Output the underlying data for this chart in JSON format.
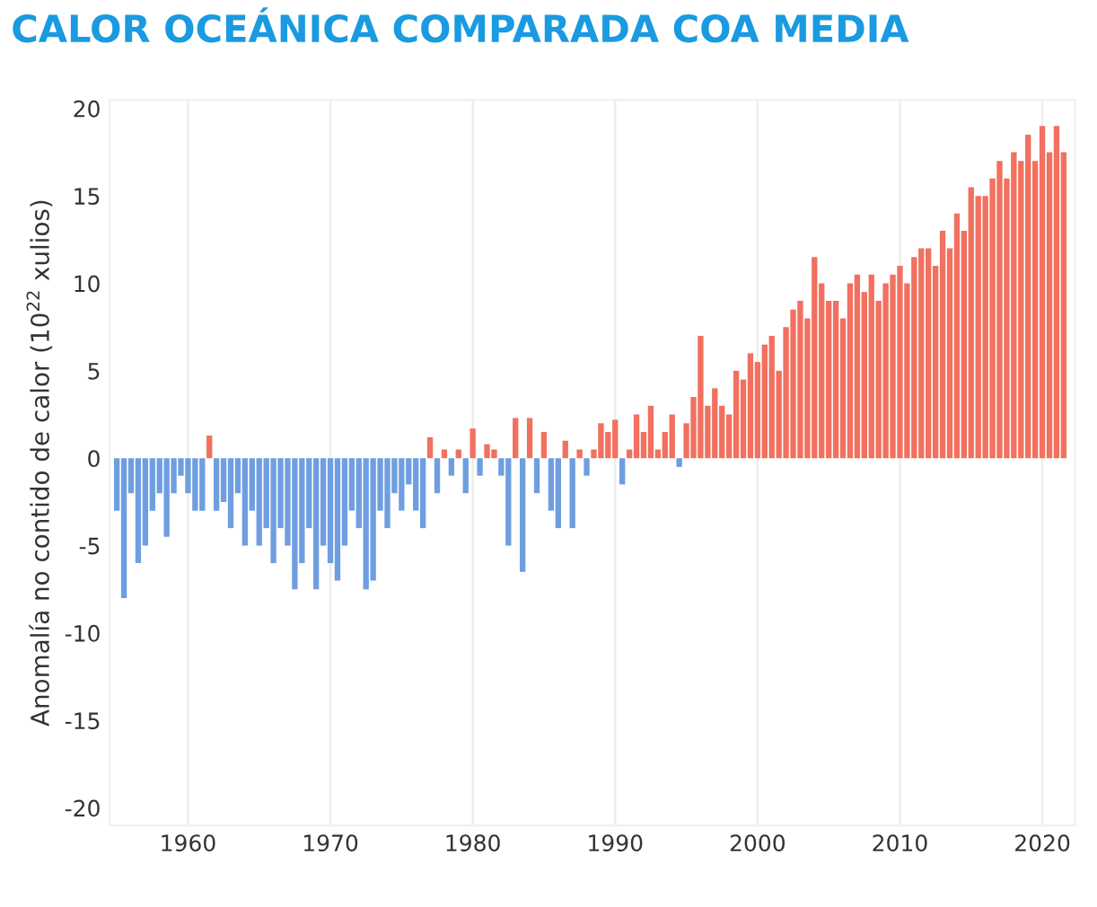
{
  "chart_data": {
    "type": "bar",
    "title": "CALOR OCEÁNICA COMPARADA COA MEDIA",
    "ylabel": "Anomalía no contido de calor (10$^{22}$ xulios)",
    "x": [
      1955.0,
      1955.5,
      1956.0,
      1956.5,
      1957.0,
      1957.5,
      1958.0,
      1958.5,
      1959.0,
      1959.5,
      1960.0,
      1960.5,
      1961.0,
      1961.5,
      1962.0,
      1962.5,
      1963.0,
      1963.5,
      1964.0,
      1964.5,
      1965.0,
      1965.5,
      1966.0,
      1966.5,
      1967.0,
      1967.5,
      1968.0,
      1968.5,
      1969.0,
      1969.5,
      1970.0,
      1970.5,
      1971.0,
      1971.5,
      1972.0,
      1972.5,
      1973.0,
      1973.5,
      1974.0,
      1974.5,
      1975.0,
      1975.5,
      1976.0,
      1976.5,
      1977.0,
      1977.5,
      1978.0,
      1978.5,
      1979.0,
      1979.5,
      1980.0,
      1980.5,
      1981.0,
      1981.5,
      1982.0,
      1982.5,
      1983.0,
      1983.5,
      1984.0,
      1984.5,
      1985.0,
      1985.5,
      1986.0,
      1986.5,
      1987.0,
      1987.5,
      1988.0,
      1988.5,
      1989.0,
      1989.5,
      1990.0,
      1990.5,
      1991.0,
      1991.5,
      1992.0,
      1992.5,
      1993.0,
      1993.5,
      1994.0,
      1994.5,
      1995.0,
      1995.5,
      1996.0,
      1996.5,
      1997.0,
      1997.5,
      1998.0,
      1998.5,
      1999.0,
      1999.5,
      2000.0,
      2000.5,
      2001.0,
      2001.5,
      2002.0,
      2002.5,
      2003.0,
      2003.5,
      2004.0,
      2004.5,
      2005.0,
      2005.5,
      2006.0,
      2006.5,
      2007.0,
      2007.5,
      2008.0,
      2008.5,
      2009.0,
      2009.5,
      2010.0,
      2010.5,
      2011.0,
      2011.5,
      2012.0,
      2012.5,
      2013.0,
      2013.5,
      2014.0,
      2014.5,
      2015.0,
      2015.5,
      2016.0,
      2016.5,
      2017.0,
      2017.5,
      2018.0,
      2018.5,
      2019.0,
      2019.5,
      2020.0,
      2020.5,
      2021.0,
      2021.5
    ],
    "values": [
      -3,
      -8,
      -2,
      -6,
      -5,
      -3,
      -2,
      -4.5,
      -2,
      -1,
      -2,
      -3,
      -3,
      1.3,
      -3,
      -2.5,
      -4,
      -2,
      -5,
      -3,
      -5,
      -4,
      -6,
      -4,
      -5,
      -7.5,
      -6,
      -4,
      -7.5,
      -5,
      -6,
      -7,
      -5,
      -3,
      -4,
      -7.5,
      -7,
      -3,
      -4,
      -2,
      -3,
      -1.5,
      -3,
      -4,
      1.2,
      -2,
      0.5,
      -1,
      0.5,
      -2,
      1.7,
      -1,
      0.8,
      0.5,
      -1,
      -5,
      2.3,
      -6.5,
      2.3,
      -2,
      1.5,
      -3,
      -4,
      1,
      -4,
      0.5,
      -1,
      0.5,
      2,
      1.5,
      2.2,
      -1.5,
      0.5,
      2.5,
      1.5,
      3,
      0.5,
      1.5,
      2.5,
      -0.5,
      2,
      3.5,
      7,
      3,
      4,
      3,
      2.5,
      5,
      4.5,
      6,
      5.5,
      6.5,
      7,
      5,
      7.5,
      8.5,
      9,
      8,
      11.5,
      10,
      9,
      9,
      8,
      10,
      10.5,
      9.5,
      10.5,
      9,
      10,
      10.5,
      11,
      10,
      11.5,
      12,
      12,
      11,
      13,
      12,
      14,
      13,
      15.5,
      15,
      15,
      16,
      17,
      16,
      17.5,
      17,
      18.5,
      17,
      19,
      17.5,
      19,
      17.5
    ],
    "colors": [
      "#6f9ee0",
      "#6f9ee0",
      "#6f9ee0",
      "#6f9ee0",
      "#6f9ee0",
      "#6f9ee0",
      "#6f9ee0",
      "#6f9ee0",
      "#6f9ee0",
      "#6f9ee0",
      "#6f9ee0",
      "#6f9ee0",
      "#6f9ee0",
      "#f2705f",
      "#6f9ee0",
      "#6f9ee0",
      "#6f9ee0",
      "#6f9ee0",
      "#6f9ee0",
      "#6f9ee0",
      "#6f9ee0",
      "#6f9ee0",
      "#6f9ee0",
      "#6f9ee0",
      "#6f9ee0",
      "#6f9ee0",
      "#6f9ee0",
      "#6f9ee0",
      "#6f9ee0",
      "#6f9ee0",
      "#6f9ee0",
      "#6f9ee0",
      "#6f9ee0",
      "#6f9ee0",
      "#6f9ee0",
      "#6f9ee0",
      "#6f9ee0",
      "#6f9ee0",
      "#6f9ee0",
      "#6f9ee0",
      "#6f9ee0",
      "#6f9ee0",
      "#6f9ee0",
      "#6f9ee0",
      "#f2705f",
      "#6f9ee0",
      "#f2705f",
      "#6f9ee0",
      "#f2705f",
      "#6f9ee0",
      "#f2705f",
      "#6f9ee0",
      "#f2705f",
      "#f2705f",
      "#6f9ee0",
      "#6f9ee0",
      "#f2705f",
      "#6f9ee0",
      "#f2705f",
      "#6f9ee0",
      "#f2705f",
      "#6f9ee0",
      "#6f9ee0",
      "#f2705f",
      "#6f9ee0",
      "#f2705f",
      "#6f9ee0",
      "#f2705f",
      "#f2705f",
      "#f2705f",
      "#f2705f",
      "#6f9ee0",
      "#f2705f",
      "#f2705f",
      "#f2705f",
      "#f2705f",
      "#f2705f",
      "#f2705f",
      "#f2705f",
      "#6f9ee0",
      "#f2705f",
      "#f2705f",
      "#f2705f",
      "#f2705f",
      "#f2705f",
      "#f2705f",
      "#f2705f",
      "#f2705f",
      "#f2705f",
      "#f2705f",
      "#f2705f",
      "#f2705f",
      "#f2705f",
      "#f2705f",
      "#f2705f",
      "#f2705f",
      "#f2705f",
      "#f2705f",
      "#f2705f",
      "#f2705f",
      "#f2705f",
      "#f2705f",
      "#f2705f",
      "#f2705f",
      "#f2705f",
      "#f2705f",
      "#f2705f",
      "#f2705f",
      "#f2705f",
      "#f2705f",
      "#f2705f",
      "#f2705f",
      "#f2705f",
      "#f2705f",
      "#f2705f",
      "#f2705f",
      "#f2705f",
      "#f2705f",
      "#f2705f",
      "#f2705f",
      "#f2705f",
      "#f2705f",
      "#f2705f",
      "#f2705f",
      "#f2705f",
      "#f2705f",
      "#f2705f",
      "#f2705f",
      "#f2705f",
      "#f2705f",
      "#f2705f",
      "#f2705f",
      "#f2705f",
      "#f2705f"
    ],
    "xlim": [
      1954.5,
      2022.3
    ],
    "xticks": [
      1960,
      1970,
      1980,
      1990,
      2000,
      2010,
      2020
    ],
    "ylim": [
      -21,
      20.5
    ],
    "yticks": [
      -20,
      -15,
      -10,
      -5,
      0,
      5,
      10,
      15,
      20
    ],
    "grid": "x"
  }
}
